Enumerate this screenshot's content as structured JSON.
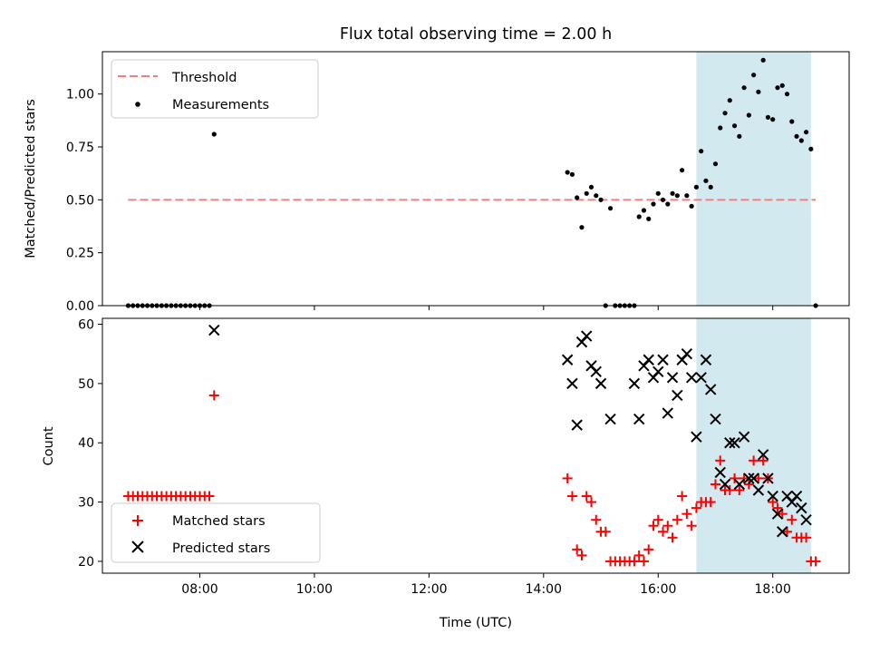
{
  "chart_data": [
    {
      "type": "scatter",
      "panel": "top",
      "title": "Flux total observing time = 2.00 h",
      "ylabel": "Matched/Predicted stars",
      "xlabel": "",
      "ylim": [
        0,
        1.2
      ],
      "xlim": [
        "06:18",
        "19:20"
      ],
      "yticks": [
        "0.00",
        "0.25",
        "0.50",
        "0.75",
        "1.00"
      ],
      "yticks_values": [
        0,
        0.25,
        0.5,
        0.75,
        1.0
      ],
      "legend_position": "top-left",
      "shaded_interval": [
        "16:40",
        "18:40"
      ],
      "shade_color": "#d2e9f0",
      "threshold": {
        "name": "Threshold",
        "value": 0.5,
        "x_range": [
          "06:45",
          "18:45"
        ],
        "color": "#f08080"
      },
      "measurements": {
        "name": "Measurements",
        "color": "#000000",
        "points": [
          [
            "06:45",
            0
          ],
          [
            "06:50",
            0
          ],
          [
            "06:55",
            0
          ],
          [
            "07:00",
            0
          ],
          [
            "07:05",
            0
          ],
          [
            "07:10",
            0
          ],
          [
            "07:15",
            0
          ],
          [
            "07:20",
            0
          ],
          [
            "07:25",
            0
          ],
          [
            "07:30",
            0
          ],
          [
            "07:35",
            0
          ],
          [
            "07:40",
            0
          ],
          [
            "07:45",
            0
          ],
          [
            "07:50",
            0
          ],
          [
            "07:55",
            0
          ],
          [
            "08:00",
            0
          ],
          [
            "08:05",
            0
          ],
          [
            "08:10",
            0
          ],
          [
            "08:15",
            0.81
          ],
          [
            "14:25",
            0.63
          ],
          [
            "14:30",
            0.62
          ],
          [
            "14:35",
            0.51
          ],
          [
            "14:40",
            0.37
          ],
          [
            "14:45",
            0.53
          ],
          [
            "14:50",
            0.56
          ],
          [
            "14:55",
            0.52
          ],
          [
            "15:00",
            0.5
          ],
          [
            "15:05",
            0
          ],
          [
            "15:10",
            0.46
          ],
          [
            "15:15",
            0
          ],
          [
            "15:20",
            0
          ],
          [
            "15:25",
            0
          ],
          [
            "15:30",
            0
          ],
          [
            "15:35",
            0
          ],
          [
            "15:40",
            0.42
          ],
          [
            "15:45",
            0.45
          ],
          [
            "15:50",
            0.41
          ],
          [
            "15:55",
            0.48
          ],
          [
            "16:00",
            0.53
          ],
          [
            "16:05",
            0.5
          ],
          [
            "16:10",
            0.48
          ],
          [
            "16:15",
            0.53
          ],
          [
            "16:20",
            0.52
          ],
          [
            "16:25",
            0.64
          ],
          [
            "16:30",
            0.52
          ],
          [
            "16:35",
            0.47
          ],
          [
            "16:40",
            0.56
          ],
          [
            "16:45",
            0.73
          ],
          [
            "16:50",
            0.59
          ],
          [
            "16:55",
            0.56
          ],
          [
            "17:00",
            0.67
          ],
          [
            "17:05",
            0.84
          ],
          [
            "17:10",
            0.91
          ],
          [
            "17:15",
            0.97
          ],
          [
            "17:20",
            0.85
          ],
          [
            "17:25",
            0.8
          ],
          [
            "17:30",
            1.03
          ],
          [
            "17:35",
            0.9
          ],
          [
            "17:40",
            1.09
          ],
          [
            "17:45",
            1.01
          ],
          [
            "17:50",
            1.16
          ],
          [
            "17:55",
            0.89
          ],
          [
            "18:00",
            0.88
          ],
          [
            "18:05",
            1.03
          ],
          [
            "18:10",
            1.04
          ],
          [
            "18:15",
            1.0
          ],
          [
            "18:20",
            0.87
          ],
          [
            "18:25",
            0.8
          ],
          [
            "18:30",
            0.78
          ],
          [
            "18:35",
            0.82
          ],
          [
            "18:40",
            0.74
          ],
          [
            "18:45",
            0
          ]
        ]
      }
    },
    {
      "type": "scatter",
      "panel": "bottom",
      "xlabel": "Time (UTC)",
      "ylabel": "Count",
      "ylim": [
        18,
        61
      ],
      "xlim": [
        "06:18",
        "19:20"
      ],
      "xticks": [
        "08:00",
        "10:00",
        "12:00",
        "14:00",
        "16:00",
        "18:00"
      ],
      "yticks": [
        "20",
        "30",
        "40",
        "50",
        "60"
      ],
      "yticks_values": [
        20,
        30,
        40,
        50,
        60
      ],
      "legend_position": "bottom-left",
      "shaded_interval": [
        "16:40",
        "18:40"
      ],
      "shade_color": "#d2e9f0",
      "series": [
        {
          "name": "Matched stars",
          "marker": "plus",
          "color": "#ff0000",
          "points": [
            [
              "06:45",
              31
            ],
            [
              "06:50",
              31
            ],
            [
              "06:55",
              31
            ],
            [
              "07:00",
              31
            ],
            [
              "07:05",
              31
            ],
            [
              "07:10",
              31
            ],
            [
              "07:15",
              31
            ],
            [
              "07:20",
              31
            ],
            [
              "07:25",
              31
            ],
            [
              "07:30",
              31
            ],
            [
              "07:35",
              31
            ],
            [
              "07:40",
              31
            ],
            [
              "07:45",
              31
            ],
            [
              "07:50",
              31
            ],
            [
              "07:55",
              31
            ],
            [
              "08:00",
              31
            ],
            [
              "08:05",
              31
            ],
            [
              "08:10",
              31
            ],
            [
              "08:15",
              48
            ],
            [
              "14:25",
              34
            ],
            [
              "14:30",
              31
            ],
            [
              "14:35",
              22
            ],
            [
              "14:40",
              21
            ],
            [
              "14:45",
              31
            ],
            [
              "14:50",
              30
            ],
            [
              "14:55",
              27
            ],
            [
              "15:00",
              25
            ],
            [
              "15:05",
              25
            ],
            [
              "15:10",
              20
            ],
            [
              "15:15",
              20
            ],
            [
              "15:20",
              20
            ],
            [
              "15:25",
              20
            ],
            [
              "15:30",
              20
            ],
            [
              "15:35",
              20
            ],
            [
              "15:40",
              21
            ],
            [
              "15:45",
              20
            ],
            [
              "15:50",
              22
            ],
            [
              "15:55",
              26
            ],
            [
              "16:00",
              27
            ],
            [
              "16:05",
              25
            ],
            [
              "16:10",
              26
            ],
            [
              "16:15",
              24
            ],
            [
              "16:20",
              27
            ],
            [
              "16:25",
              31
            ],
            [
              "16:30",
              28
            ],
            [
              "16:35",
              26
            ],
            [
              "16:40",
              29
            ],
            [
              "16:45",
              30
            ],
            [
              "16:50",
              30
            ],
            [
              "16:55",
              30
            ],
            [
              "17:00",
              33
            ],
            [
              "17:05",
              37
            ],
            [
              "17:10",
              32
            ],
            [
              "17:15",
              32
            ],
            [
              "17:20",
              34
            ],
            [
              "17:25",
              32
            ],
            [
              "17:30",
              34
            ],
            [
              "17:35",
              33
            ],
            [
              "17:40",
              37
            ],
            [
              "17:45",
              34
            ],
            [
              "17:50",
              37
            ],
            [
              "17:55",
              34
            ],
            [
              "18:00",
              30
            ],
            [
              "18:05",
              29
            ],
            [
              "18:10",
              28
            ],
            [
              "18:15",
              25
            ],
            [
              "18:20",
              27
            ],
            [
              "18:25",
              24
            ],
            [
              "18:30",
              24
            ],
            [
              "18:35",
              24
            ],
            [
              "18:40",
              20
            ],
            [
              "18:45",
              20
            ]
          ]
        },
        {
          "name": "Predicted stars",
          "marker": "x",
          "color": "#000000",
          "points": [
            [
              "08:15",
              59
            ],
            [
              "14:25",
              54
            ],
            [
              "14:30",
              50
            ],
            [
              "14:35",
              43
            ],
            [
              "14:40",
              57
            ],
            [
              "14:45",
              58
            ],
            [
              "14:50",
              53
            ],
            [
              "14:55",
              52
            ],
            [
              "15:00",
              50
            ],
            [
              "15:10",
              44
            ],
            [
              "15:35",
              50
            ],
            [
              "15:40",
              44
            ],
            [
              "15:45",
              53
            ],
            [
              "15:50",
              54
            ],
            [
              "15:55",
              51
            ],
            [
              "16:00",
              52
            ],
            [
              "16:05",
              54
            ],
            [
              "16:10",
              45
            ],
            [
              "16:15",
              51
            ],
            [
              "16:20",
              48
            ],
            [
              "16:25",
              54
            ],
            [
              "16:30",
              55
            ],
            [
              "16:35",
              51
            ],
            [
              "16:40",
              41
            ],
            [
              "16:45",
              51
            ],
            [
              "16:50",
              54
            ],
            [
              "16:55",
              49
            ],
            [
              "17:00",
              44
            ],
            [
              "17:05",
              35
            ],
            [
              "17:10",
              33
            ],
            [
              "17:15",
              40
            ],
            [
              "17:20",
              40
            ],
            [
              "17:25",
              33
            ],
            [
              "17:30",
              41
            ],
            [
              "17:35",
              34
            ],
            [
              "17:40",
              34
            ],
            [
              "17:45",
              32
            ],
            [
              "17:50",
              38
            ],
            [
              "17:55",
              34
            ],
            [
              "18:00",
              31
            ],
            [
              "18:05",
              28
            ],
            [
              "18:10",
              25
            ],
            [
              "18:15",
              31
            ],
            [
              "18:20",
              30
            ],
            [
              "18:25",
              31
            ],
            [
              "18:30",
              29
            ],
            [
              "18:35",
              27
            ]
          ]
        }
      ]
    }
  ]
}
